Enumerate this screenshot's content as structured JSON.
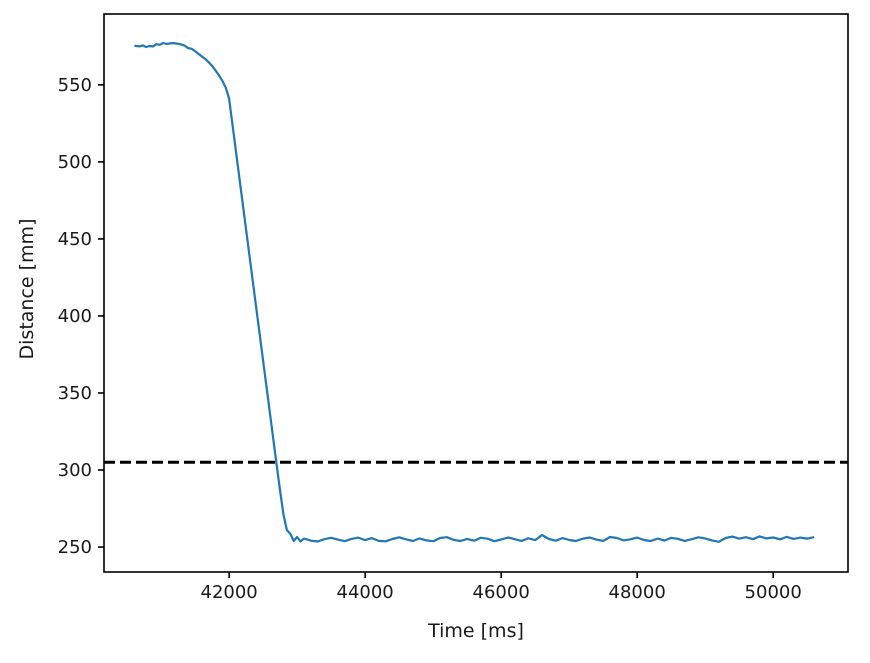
{
  "figure": {
    "background": "#ffffff"
  },
  "chart_data": {
    "type": "line",
    "title": "",
    "xlabel": "Time [ms]",
    "ylabel": "Distance [mm]",
    "xlim": [
      40160,
      51100
    ],
    "ylim": [
      233.8,
      596.0
    ],
    "xticks": [
      42000,
      44000,
      46000,
      48000,
      50000
    ],
    "yticks": [
      250,
      300,
      350,
      400,
      450,
      500,
      550
    ],
    "grid": false,
    "legend": "none",
    "axis_color": "#000000",
    "tick_label_color": "#1a1a1a",
    "reference_lines": [
      {
        "name": "threshold",
        "orientation": "horizontal",
        "value": 305,
        "color": "#000000",
        "style": "dashed",
        "line_width": 3
      }
    ],
    "series": [
      {
        "name": "distance",
        "color": "#1f77b4",
        "line_width": 2.2,
        "points": [
          [
            40620,
            575.3
          ],
          [
            40680,
            575.0
          ],
          [
            40730,
            575.6
          ],
          [
            40780,
            574.6
          ],
          [
            40830,
            575.2
          ],
          [
            40880,
            574.9
          ],
          [
            40930,
            576.4
          ],
          [
            40980,
            576.0
          ],
          [
            41030,
            577.2
          ],
          [
            41080,
            576.5
          ],
          [
            41130,
            576.9
          ],
          [
            41180,
            577.1
          ],
          [
            41230,
            576.8
          ],
          [
            41280,
            576.4
          ],
          [
            41340,
            575.6
          ],
          [
            41400,
            573.8
          ],
          [
            41450,
            573.4
          ],
          [
            41500,
            571.8
          ],
          [
            41550,
            570.1
          ],
          [
            41600,
            568.4
          ],
          [
            41650,
            566.8
          ],
          [
            41700,
            564.7
          ],
          [
            41750,
            562.3
          ],
          [
            41800,
            559.4
          ],
          [
            41850,
            556.3
          ],
          [
            41900,
            552.7
          ],
          [
            41950,
            548.3
          ],
          [
            42000,
            541.0
          ],
          [
            42050,
            524.0
          ],
          [
            42100,
            507.0
          ],
          [
            42150,
            490.0
          ],
          [
            42200,
            473.0
          ],
          [
            42250,
            456.0
          ],
          [
            42300,
            439.0
          ],
          [
            42350,
            422.0
          ],
          [
            42400,
            405.0
          ],
          [
            42450,
            388.0
          ],
          [
            42500,
            371.0
          ],
          [
            42550,
            354.0
          ],
          [
            42600,
            337.0
          ],
          [
            42650,
            320.0
          ],
          [
            42700,
            303.0
          ],
          [
            42750,
            286.5
          ],
          [
            42800,
            271.0
          ],
          [
            42850,
            261.0
          ],
          [
            42900,
            258.5
          ],
          [
            42950,
            254.0
          ],
          [
            43000,
            256.5
          ],
          [
            43050,
            253.6
          ],
          [
            43100,
            255.5
          ],
          [
            43200,
            254.2
          ],
          [
            43300,
            253.6
          ],
          [
            43400,
            255.1
          ],
          [
            43500,
            256.0
          ],
          [
            43600,
            254.8
          ],
          [
            43700,
            253.8
          ],
          [
            43800,
            255.3
          ],
          [
            43900,
            256.1
          ],
          [
            44000,
            254.5
          ],
          [
            44100,
            255.8
          ],
          [
            44200,
            254.0
          ],
          [
            44300,
            253.7
          ],
          [
            44400,
            255.2
          ],
          [
            44500,
            256.3
          ],
          [
            44600,
            255.0
          ],
          [
            44700,
            253.9
          ],
          [
            44800,
            255.6
          ],
          [
            44900,
            254.3
          ],
          [
            45000,
            253.8
          ],
          [
            45100,
            255.9
          ],
          [
            45200,
            256.4
          ],
          [
            45300,
            254.7
          ],
          [
            45400,
            253.9
          ],
          [
            45500,
            255.3
          ],
          [
            45600,
            254.1
          ],
          [
            45700,
            256.0
          ],
          [
            45800,
            255.4
          ],
          [
            45900,
            253.8
          ],
          [
            46000,
            254.9
          ],
          [
            46100,
            256.2
          ],
          [
            46200,
            255.1
          ],
          [
            46300,
            254.0
          ],
          [
            46400,
            255.7
          ],
          [
            46500,
            254.5
          ],
          [
            46600,
            257.8
          ],
          [
            46700,
            255.2
          ],
          [
            46800,
            254.1
          ],
          [
            46900,
            255.8
          ],
          [
            47000,
            254.6
          ],
          [
            47100,
            253.9
          ],
          [
            47200,
            255.4
          ],
          [
            47300,
            256.2
          ],
          [
            47400,
            254.8
          ],
          [
            47500,
            254.0
          ],
          [
            47600,
            256.5
          ],
          [
            47700,
            255.9
          ],
          [
            47800,
            254.3
          ],
          [
            47900,
            255.0
          ],
          [
            48000,
            256.1
          ],
          [
            48100,
            254.6
          ],
          [
            48200,
            253.9
          ],
          [
            48300,
            255.5
          ],
          [
            48400,
            254.2
          ],
          [
            48500,
            256.0
          ],
          [
            48600,
            255.3
          ],
          [
            48700,
            254.0
          ],
          [
            48800,
            255.1
          ],
          [
            48900,
            256.3
          ],
          [
            49000,
            255.6
          ],
          [
            49100,
            254.3
          ],
          [
            49200,
            253.4
          ],
          [
            49300,
            255.9
          ],
          [
            49400,
            256.8
          ],
          [
            49500,
            255.4
          ],
          [
            49600,
            256.4
          ],
          [
            49700,
            255.1
          ],
          [
            49800,
            256.9
          ],
          [
            49900,
            255.6
          ],
          [
            50000,
            256.2
          ],
          [
            50100,
            255.0
          ],
          [
            50200,
            256.6
          ],
          [
            50300,
            255.3
          ],
          [
            50400,
            256.1
          ],
          [
            50500,
            255.5
          ],
          [
            50590,
            256.3
          ]
        ]
      }
    ]
  }
}
